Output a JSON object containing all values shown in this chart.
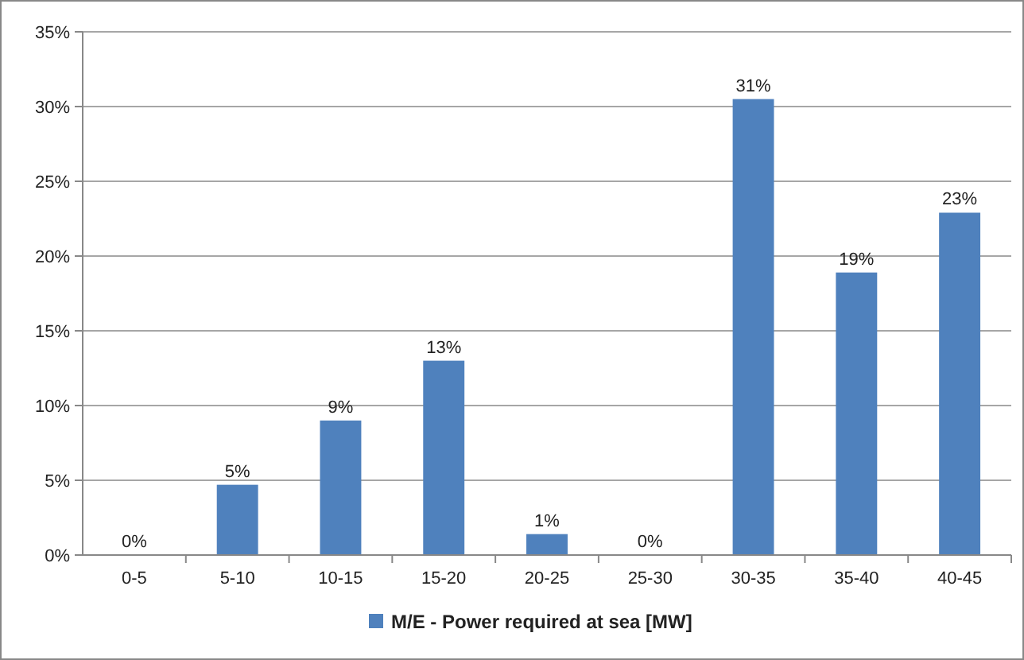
{
  "chart_data": {
    "type": "bar",
    "categories": [
      "0-5",
      "5-10",
      "10-15",
      "15-20",
      "20-25",
      "25-30",
      "30-35",
      "35-40",
      "40-45"
    ],
    "series": [
      {
        "name": "M/E - Power required at sea [MW]",
        "color": "#4f81bd",
        "values": [
          0,
          4.7,
          9,
          13,
          1.4,
          0,
          30.5,
          18.9,
          22.9
        ],
        "value_labels": [
          "0%",
          "5%",
          "9%",
          "13%",
          "1%",
          "0%",
          "31%",
          "19%",
          "23%"
        ]
      }
    ],
    "ylim": [
      0,
      35
    ],
    "yticks": [
      {
        "value": 0,
        "label": "0%"
      },
      {
        "value": 5,
        "label": "5%"
      },
      {
        "value": 10,
        "label": "10%"
      },
      {
        "value": 15,
        "label": "15%"
      },
      {
        "value": 20,
        "label": "20%"
      },
      {
        "value": 25,
        "label": "25%"
      },
      {
        "value": 30,
        "label": "30%"
      },
      {
        "value": 35,
        "label": "35%"
      }
    ],
    "grid": "y",
    "legend": "bottom"
  }
}
